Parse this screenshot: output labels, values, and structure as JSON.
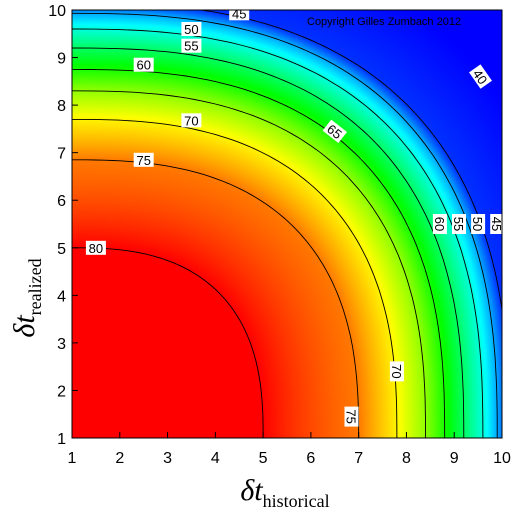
{
  "chart_data": {
    "type": "heatmap",
    "subtype": "contour",
    "copyright": "Copyright Gilles Zumbach 2012",
    "xlabel": {
      "symbol": "δt",
      "subscript": "historical"
    },
    "ylabel": {
      "symbol": "δt",
      "subscript": "realized"
    },
    "xlim": [
      1,
      10
    ],
    "ylim": [
      1,
      10
    ],
    "x_ticks": [
      1,
      2,
      3,
      4,
      5,
      6,
      7,
      8,
      9,
      10
    ],
    "y_ticks": [
      1,
      2,
      3,
      4,
      5,
      6,
      7,
      8,
      9,
      10
    ],
    "grid": false,
    "colormap": [
      "#0000ff",
      "#00ffff",
      "#00ff00",
      "#ffff00",
      "#ff0000"
    ],
    "contours": [
      {
        "level": 80,
        "label": "80",
        "x_edge": 5.0,
        "y_edge": 5.0,
        "label_at": [
          1.5,
          5.0
        ]
      },
      {
        "level": 75,
        "label": "75",
        "x_edge": 7.0,
        "y_edge": 6.85,
        "label_at": [
          2.5,
          6.85
        ],
        "label2_at": [
          6.85,
          1.45
        ]
      },
      {
        "level": 70,
        "label": "70",
        "x_edge": 7.8,
        "y_edge": 7.7,
        "label_at": [
          3.5,
          7.68
        ],
        "label2_at": [
          7.8,
          2.4
        ]
      },
      {
        "level": 65,
        "label": "65",
        "x_edge": 8.4,
        "y_edge": 8.3,
        "label_at": [
          6.5,
          7.45
        ]
      },
      {
        "level": 60,
        "label": "60",
        "x_edge": 8.8,
        "y_edge": 8.75,
        "label_at": [
          2.5,
          8.85
        ],
        "label2_at": [
          8.7,
          5.5
        ]
      },
      {
        "level": 55,
        "label": "55",
        "x_edge": 9.2,
        "y_edge": 9.2,
        "label_at": [
          3.5,
          9.25
        ],
        "label2_at": [
          9.1,
          5.5
        ]
      },
      {
        "level": 50,
        "label": "50",
        "x_edge": 9.6,
        "y_edge": 9.6,
        "label_at": [
          3.5,
          9.6
        ],
        "label2_at": [
          9.5,
          5.5
        ]
      },
      {
        "level": 45,
        "label": "45",
        "x_edge": 9.9,
        "y_edge": 9.93,
        "label_at": [
          4.5,
          9.93
        ],
        "label2_at": [
          9.9,
          5.5
        ]
      },
      {
        "level": 40,
        "label": "40",
        "x_edge": 10.15,
        "y_edge": 10.15,
        "label_at": [
          9.55,
          8.6
        ]
      }
    ]
  }
}
